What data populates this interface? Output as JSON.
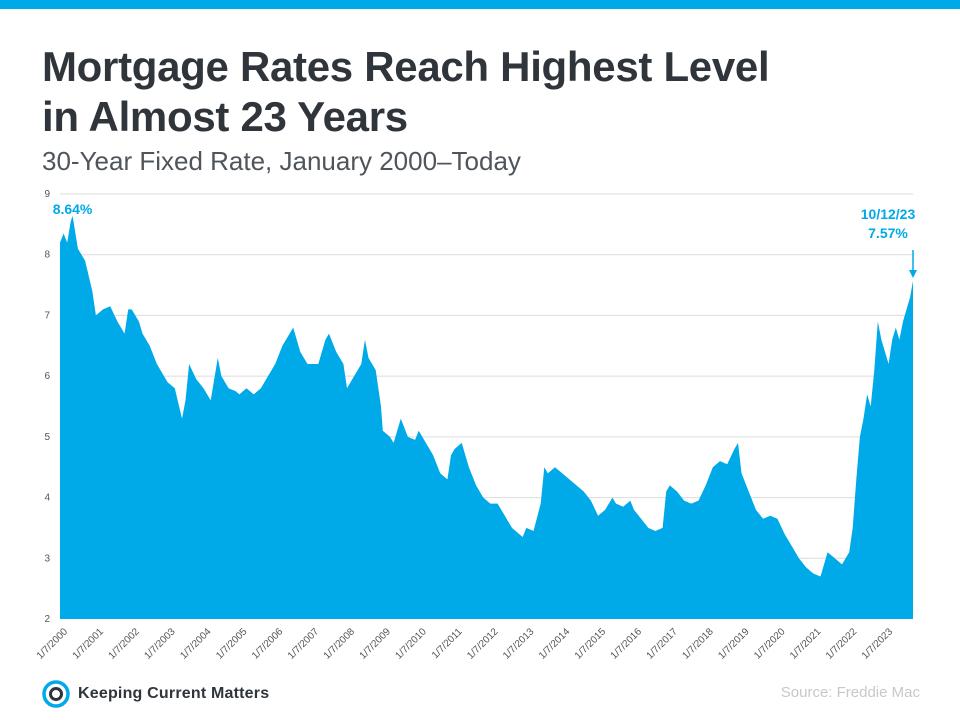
{
  "header": {
    "title_line1": "Mortgage Rates Reach Highest Level",
    "title_line2": "in Almost 23 Years",
    "subtitle": "30-Year Fixed Rate, January 2000–Today"
  },
  "footer": {
    "logo_text": "Keeping Current Matters",
    "source": "Source: Freddie Mac"
  },
  "colors": {
    "accent": "#00a9e8",
    "area": "#00a9e8",
    "title": "#2f353b",
    "grid": "#dcdcdc"
  },
  "chart_data": {
    "type": "area",
    "ylim": [
      2,
      9
    ],
    "yticks": [
      2,
      3,
      4,
      5,
      6,
      7,
      8,
      9
    ],
    "xlim": [
      2000.0,
      2023.78
    ],
    "xtick_labels": [
      "1/7/2000",
      "1/7/2001",
      "1/7/2002",
      "1/7/2003",
      "1/7/2004",
      "1/7/2005",
      "1/7/2006",
      "1/7/2007",
      "1/7/2008",
      "1/7/2009",
      "1/7/2010",
      "1/7/2011",
      "1/7/2012",
      "1/7/2013",
      "1/7/2014",
      "1/7/2015",
      "1/7/2016",
      "1/7/2017",
      "1/7/2018",
      "1/7/2019",
      "1/7/2020",
      "1/7/2021",
      "1/7/2022",
      "1/7/2023"
    ],
    "grid": true,
    "series": [
      {
        "x": [
          2000.0,
          2000.1,
          2000.2,
          2000.3,
          2000.35,
          2000.5,
          2000.7,
          2000.9,
          2001.0,
          2001.2,
          2001.4,
          2001.6,
          2001.8,
          2001.9,
          2002.0,
          2002.2,
          2002.3,
          2002.5,
          2002.7,
          2002.9,
          2003.0,
          2003.2,
          2003.4,
          2003.5,
          2003.6,
          2003.8,
          2004.0,
          2004.2,
          2004.4,
          2004.5,
          2004.7,
          2004.9,
          2005.0,
          2005.2,
          2005.4,
          2005.6,
          2005.8,
          2006.0,
          2006.2,
          2006.4,
          2006.5,
          2006.7,
          2006.9,
          2007.0,
          2007.2,
          2007.4,
          2007.5,
          2007.7,
          2007.9,
          2008.0,
          2008.2,
          2008.4,
          2008.5,
          2008.6,
          2008.8,
          2008.95,
          2009.0,
          2009.2,
          2009.3,
          2009.5,
          2009.7,
          2009.9,
          2010.0,
          2010.2,
          2010.4,
          2010.6,
          2010.8,
          2010.9,
          2011.0,
          2011.2,
          2011.4,
          2011.6,
          2011.8,
          2012.0,
          2012.2,
          2012.4,
          2012.6,
          2012.8,
          2012.9,
          2013.0,
          2013.2,
          2013.4,
          2013.5,
          2013.6,
          2013.8,
          2014.0,
          2014.2,
          2014.4,
          2014.6,
          2014.8,
          2015.0,
          2015.2,
          2015.4,
          2015.5,
          2015.7,
          2015.9,
          2016.0,
          2016.2,
          2016.4,
          2016.6,
          2016.8,
          2016.9,
          2017.0,
          2017.2,
          2017.4,
          2017.6,
          2017.8,
          2018.0,
          2018.2,
          2018.4,
          2018.6,
          2018.8,
          2018.9,
          2019.0,
          2019.2,
          2019.4,
          2019.6,
          2019.8,
          2020.0,
          2020.2,
          2020.4,
          2020.6,
          2020.8,
          2021.0,
          2021.2,
          2021.4,
          2021.6,
          2021.8,
          2022.0,
          2022.1,
          2022.2,
          2022.3,
          2022.4,
          2022.5,
          2022.6,
          2022.7,
          2022.8,
          2022.9,
          2023.0,
          2023.1,
          2023.2,
          2023.3,
          2023.4,
          2023.5,
          2023.6,
          2023.7,
          2023.78
        ],
        "y": [
          8.2,
          8.35,
          8.2,
          8.55,
          8.64,
          8.1,
          7.9,
          7.4,
          7.0,
          7.1,
          7.15,
          6.9,
          6.7,
          7.1,
          7.1,
          6.9,
          6.7,
          6.5,
          6.2,
          6.0,
          5.9,
          5.8,
          5.3,
          5.6,
          6.2,
          5.95,
          5.8,
          5.6,
          6.3,
          6.0,
          5.8,
          5.75,
          5.7,
          5.8,
          5.7,
          5.8,
          6.0,
          6.2,
          6.5,
          6.7,
          6.8,
          6.4,
          6.2,
          6.2,
          6.2,
          6.6,
          6.7,
          6.4,
          6.2,
          5.8,
          6.0,
          6.2,
          6.6,
          6.3,
          6.1,
          5.5,
          5.1,
          5.0,
          4.9,
          5.3,
          5.0,
          4.95,
          5.1,
          4.9,
          4.7,
          4.4,
          4.3,
          4.7,
          4.8,
          4.9,
          4.5,
          4.2,
          4.0,
          3.9,
          3.9,
          3.7,
          3.5,
          3.4,
          3.35,
          3.5,
          3.45,
          3.9,
          4.5,
          4.4,
          4.5,
          4.4,
          4.3,
          4.2,
          4.1,
          3.95,
          3.7,
          3.8,
          4.0,
          3.9,
          3.85,
          3.95,
          3.8,
          3.65,
          3.5,
          3.45,
          3.5,
          4.1,
          4.2,
          4.1,
          3.95,
          3.9,
          3.95,
          4.2,
          4.5,
          4.6,
          4.55,
          4.8,
          4.9,
          4.4,
          4.1,
          3.8,
          3.65,
          3.7,
          3.65,
          3.4,
          3.2,
          3.0,
          2.85,
          2.75,
          2.7,
          3.1,
          3.0,
          2.9,
          3.1,
          3.5,
          4.3,
          5.0,
          5.3,
          5.7,
          5.5,
          6.1,
          6.9,
          6.6,
          6.4,
          6.2,
          6.6,
          6.8,
          6.6,
          6.9,
          7.1,
          7.3,
          7.57
        ]
      }
    ],
    "annotations": [
      {
        "text": "8.64%"
      },
      {
        "date": "10/12/23",
        "value_text": "7.57%"
      }
    ]
  }
}
